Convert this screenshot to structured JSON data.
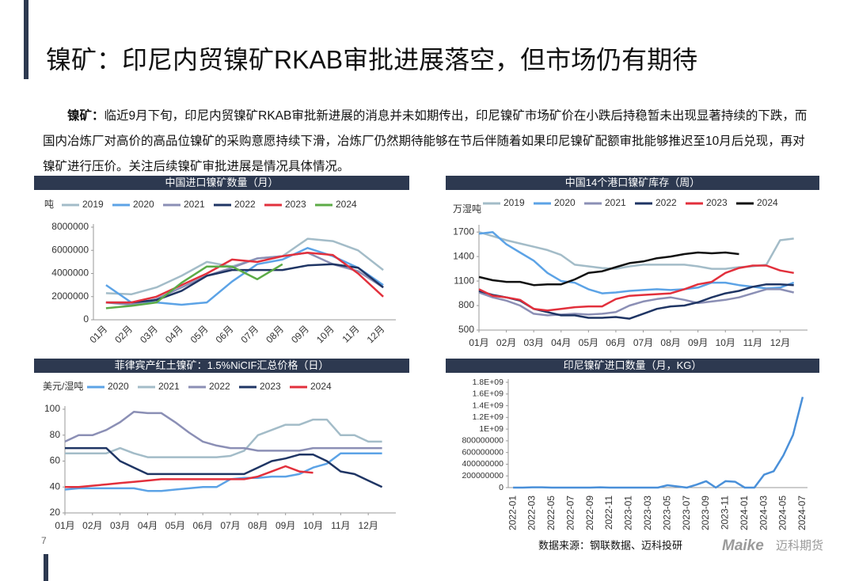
{
  "header": {
    "title": "镍矿：印尼内贸镍矿RKAB审批进展落空，但市场仍有期待"
  },
  "paragraph": {
    "lead": "镍矿：",
    "text": "临近9月下旬，印尼内贸镍矿RKAB审批新进展的消息并未如期传出，印尼镍矿市场矿价在小跌后持稳暂未出现显著持续的下跌，而国内冶炼厂对高价的高品位镍矿的采购意愿持续下滑，冶炼厂仍然期待能够在节后伴随着如果印尼镍矿配额审批能够推迟至10月后兑现，再对镍矿进行压价。关注后续镍矿审批进展是情况具体情况。"
  },
  "chart_data": [
    {
      "type": "line",
      "title": "中国进口镍矿数量（月）",
      "y_label": "吨",
      "categories": [
        "01月",
        "02月",
        "03月",
        "04月",
        "05月",
        "06月",
        "07月",
        "08月",
        "09月",
        "10月",
        "11月",
        "12月"
      ],
      "ylim": [
        0,
        8000000
      ],
      "yticks": [
        0,
        2000000,
        4000000,
        6000000,
        8000000
      ],
      "series": [
        {
          "name": "2019",
          "color": "#a3bcc8",
          "values": [
            2300000,
            2200000,
            2800000,
            3800000,
            5000000,
            4600000,
            5300000,
            5500000,
            7000000,
            6800000,
            6000000,
            4300000
          ]
        },
        {
          "name": "2020",
          "color": "#5ca3e6",
          "values": [
            3000000,
            1500000,
            1500000,
            1300000,
            1500000,
            3300000,
            4800000,
            5200000,
            6200000,
            5500000,
            4500000,
            3000000
          ]
        },
        {
          "name": "2021",
          "color": "#8b8fb5",
          "values": [
            1500000,
            1300000,
            1800000,
            2800000,
            3800000,
            4500000,
            5300000,
            5500000,
            5800000,
            4800000,
            4200000,
            2800000
          ]
        },
        {
          "name": "2022",
          "color": "#1f3564",
          "values": [
            1500000,
            1500000,
            1700000,
            2500000,
            3800000,
            4300000,
            4300000,
            4300000,
            4700000,
            4800000,
            4500000,
            2800000
          ]
        },
        {
          "name": "2023",
          "color": "#e2303c",
          "values": [
            1500000,
            1500000,
            2000000,
            3000000,
            4000000,
            5200000,
            5000000,
            5500000,
            5800000,
            5600000,
            4000000,
            2000000
          ]
        },
        {
          "name": "2024",
          "color": "#5cab47",
          "values": [
            1000000,
            1200000,
            1500000,
            3200000,
            4600000,
            4600000,
            3500000,
            4800000,
            null,
            null,
            null,
            null
          ]
        }
      ]
    },
    {
      "type": "line",
      "title": "中国14个港口镍矿库存（周）",
      "y_label": "万湿吨",
      "x": [
        1,
        1.5,
        2,
        2.5,
        3,
        3.5,
        4,
        4.5,
        5,
        5.5,
        6,
        6.5,
        7,
        7.5,
        8,
        8.5,
        9,
        9.5,
        10,
        10.5,
        11,
        11.5,
        12,
        12.5
      ],
      "xlim": [
        1,
        13
      ],
      "xticks": [
        {
          "value": 1,
          "label": "01月"
        },
        {
          "value": 2,
          "label": "02月"
        },
        {
          "value": 3,
          "label": "03月"
        },
        {
          "value": 4,
          "label": "04月"
        },
        {
          "value": 5,
          "label": "05月"
        },
        {
          "value": 6,
          "label": "06月"
        },
        {
          "value": 7,
          "label": "07月"
        },
        {
          "value": 8,
          "label": "08月"
        },
        {
          "value": 9,
          "label": "09月"
        },
        {
          "value": 10,
          "label": "10月"
        },
        {
          "value": 11,
          "label": "11月"
        },
        {
          "value": 12,
          "label": "12月"
        }
      ],
      "ylim": [
        500,
        1750
      ],
      "yticks": [
        500,
        800,
        1100,
        1400,
        1700
      ],
      "series": [
        {
          "name": "2019",
          "color": "#a3bcc8",
          "values": [
            1700,
            1650,
            1600,
            1560,
            1520,
            1480,
            1420,
            1300,
            1280,
            1260,
            1250,
            1280,
            1300,
            1300,
            1300,
            1300,
            1280,
            1250,
            1250,
            1270,
            1280,
            1300,
            1600,
            1620
          ]
        },
        {
          "name": "2020",
          "color": "#5ca3e6",
          "values": [
            1680,
            1700,
            1550,
            1450,
            1350,
            1200,
            1100,
            1080,
            1000,
            950,
            960,
            980,
            990,
            1000,
            990,
            1000,
            1020,
            1080,
            1080,
            1050,
            1030,
            1010,
            1020,
            1080
          ]
        },
        {
          "name": "2021",
          "color": "#8b8fb5",
          "values": [
            960,
            900,
            860,
            800,
            700,
            680,
            690,
            700,
            690,
            700,
            720,
            800,
            850,
            880,
            900,
            870,
            830,
            850,
            870,
            900,
            950,
            1000,
            1000,
            960
          ]
        },
        {
          "name": "2022",
          "color": "#1f3564",
          "values": [
            980,
            930,
            900,
            860,
            760,
            720,
            680,
            680,
            650,
            650,
            660,
            640,
            700,
            760,
            790,
            800,
            840,
            900,
            950,
            980,
            1030,
            1060,
            1060,
            1050
          ]
        },
        {
          "name": "2023",
          "color": "#e2303c",
          "values": [
            1000,
            920,
            900,
            870,
            760,
            740,
            760,
            780,
            790,
            790,
            880,
            920,
            930,
            940,
            950,
            1000,
            1060,
            1090,
            1200,
            1260,
            1290,
            1290,
            1230,
            1200
          ]
        },
        {
          "name": "2024",
          "color": "#111111",
          "values": [
            1150,
            1110,
            1090,
            1090,
            1050,
            1060,
            1060,
            1120,
            1200,
            1220,
            1270,
            1320,
            1340,
            1380,
            1400,
            1430,
            1450,
            1440,
            1450,
            1430,
            null,
            null,
            null,
            null
          ]
        }
      ]
    },
    {
      "type": "line",
      "title": "菲律宾产红土镍矿：1.5%NiCIF汇总价格（日）",
      "y_label": "美元/湿吨",
      "x": [
        1,
        1.5,
        2,
        2.5,
        3,
        3.5,
        4,
        4.5,
        5,
        5.5,
        6,
        6.5,
        7,
        7.5,
        8,
        8.5,
        9,
        9.5,
        10,
        10.5,
        11,
        11.5,
        12,
        12.5
      ],
      "xlim": [
        1,
        13
      ],
      "xticks": [
        {
          "value": 1,
          "label": "01月"
        },
        {
          "value": 2,
          "label": "02月"
        },
        {
          "value": 3,
          "label": "03月"
        },
        {
          "value": 4,
          "label": "04月"
        },
        {
          "value": 5,
          "label": "05月"
        },
        {
          "value": 6,
          "label": "06月"
        },
        {
          "value": 7,
          "label": "07月"
        },
        {
          "value": 8,
          "label": "08月"
        },
        {
          "value": 9,
          "label": "09月"
        },
        {
          "value": 10,
          "label": "10月"
        },
        {
          "value": 11,
          "label": "11月"
        },
        {
          "value": 12,
          "label": "12月"
        }
      ],
      "ylim": [
        20,
        100
      ],
      "yticks": [
        20,
        40,
        60,
        80,
        100
      ],
      "series": [
        {
          "name": "2020",
          "color": "#5ca3e6",
          "values": [
            38,
            39,
            39,
            39,
            39,
            39,
            37,
            37,
            38,
            39,
            40,
            40,
            46,
            47,
            47,
            48,
            48,
            50,
            55,
            58,
            66,
            66,
            66,
            66
          ]
        },
        {
          "name": "2021",
          "color": "#a3bcc8",
          "values": [
            66,
            66,
            66,
            66,
            70,
            66,
            63,
            63,
            63,
            63,
            63,
            63,
            64,
            68,
            80,
            84,
            88,
            88,
            92,
            92,
            80,
            80,
            75,
            75
          ]
        },
        {
          "name": "2022",
          "color": "#8b8fb5",
          "values": [
            75,
            80,
            80,
            84,
            90,
            98,
            97,
            97,
            90,
            82,
            75,
            72,
            70,
            70,
            68,
            68,
            68,
            68,
            70,
            70,
            70,
            70,
            70,
            70
          ]
        },
        {
          "name": "2023",
          "color": "#1f3564",
          "values": [
            70,
            70,
            70,
            70,
            60,
            55,
            50,
            50,
            50,
            50,
            50,
            50,
            50,
            50,
            55,
            60,
            62,
            65,
            65,
            60,
            52,
            50,
            45,
            40
          ]
        },
        {
          "name": "2024",
          "color": "#e2303c",
          "values": [
            40,
            40,
            41,
            42,
            43,
            44,
            45,
            46,
            46,
            46,
            46,
            46,
            46,
            46,
            48,
            52,
            56,
            52,
            51,
            null,
            null,
            null,
            null,
            null
          ]
        }
      ]
    },
    {
      "type": "line",
      "title": "印尼镍矿进口数量（月，KG）",
      "categories": [
        "2022-01",
        null,
        "2022-03",
        null,
        "2022-05",
        null,
        "2022-07",
        null,
        "2022-09",
        null,
        "2022-11",
        null,
        "2023-01",
        null,
        "2023-03",
        null,
        "2023-05",
        null,
        "2023-07",
        null,
        "2023-09",
        null,
        "2023-11",
        null,
        "2024-01",
        null,
        "2024-03",
        null,
        "2024-05",
        null,
        "2024-07"
      ],
      "ylim": [
        0,
        1800000000
      ],
      "yticks": [
        0,
        200000000,
        400000000,
        600000000,
        800000000,
        {
          "value": 1000000000,
          "label": "1E+09"
        },
        {
          "value": 1200000000,
          "label": "1.2E+09"
        },
        {
          "value": 1400000000,
          "label": "1.4E+09"
        },
        {
          "value": 1600000000,
          "label": "1.6E+09"
        },
        {
          "value": 1800000000,
          "label": "1.8E+09"
        }
      ],
      "series": [
        {
          "name": "印尼镍矿进口数量",
          "color": "#4a90d9",
          "values": [
            0,
            0,
            5000000,
            5000000,
            0,
            0,
            0,
            0,
            0,
            5000000,
            0,
            0,
            0,
            0,
            0,
            0,
            40000000,
            20000000,
            0,
            50000000,
            110000000,
            0,
            110000000,
            100000000,
            0,
            0,
            220000000,
            280000000,
            550000000,
            900000000,
            1550000000
          ]
        }
      ]
    }
  ],
  "footer": {
    "source": "数据来源：钢联数据、迈科投研",
    "page": "7",
    "logo": "Maike",
    "logo_cn": "迈科期货"
  }
}
